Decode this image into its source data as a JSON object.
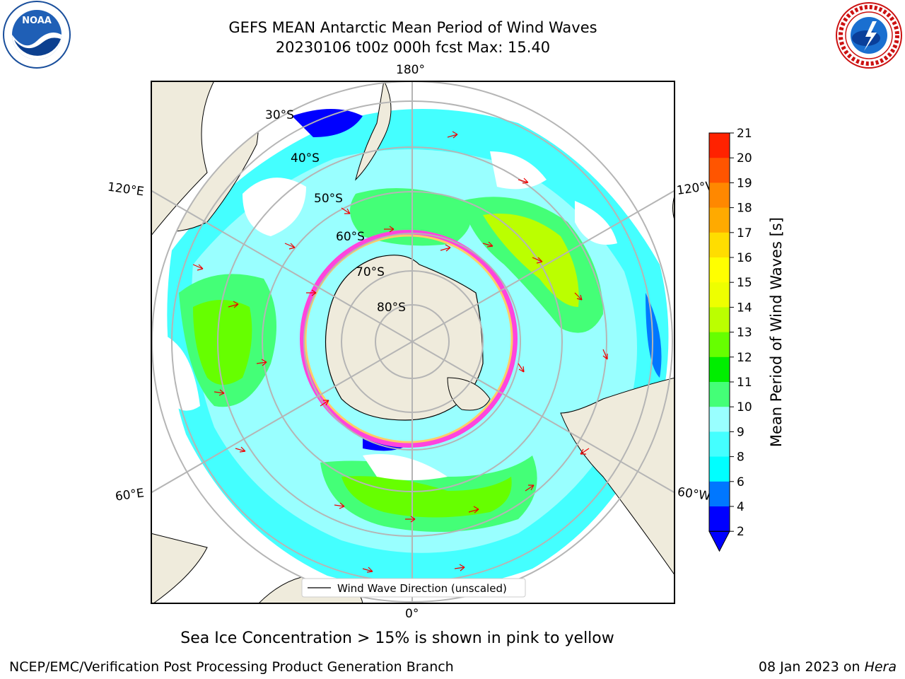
{
  "title_line1": "GEFS MEAN Antarctic Mean Period of Wind Waves",
  "title_line2": "20230106 t00z 000h fcst   Max: 15.40",
  "logos": {
    "left": "NOAA",
    "right": "NATIONAL WEATHER SERVICE"
  },
  "map": {
    "projection": "South Polar Stereographic",
    "meridian_labels": [
      "180°",
      "120°E",
      "120°W",
      "60°E",
      "60°W",
      "0°"
    ],
    "parallel_labels": [
      "30°S",
      "40°S",
      "50°S",
      "60°S",
      "70°S",
      "80°S"
    ],
    "legend_label": "Wind Wave Direction (unscaled)"
  },
  "colorbar": {
    "label": "Mean Period of Wind Waves [s]",
    "ticks": [
      "2",
      "4",
      "6",
      "8",
      "9",
      "10",
      "11",
      "12",
      "13",
      "14",
      "15",
      "16",
      "17",
      "18",
      "19",
      "20",
      "21"
    ],
    "colors": [
      "#0000ff",
      "#0077ff",
      "#00ffff",
      "#44ffff",
      "#99ffff",
      "#44ff77",
      "#00ee00",
      "#66ff00",
      "#bbff00",
      "#eeff00",
      "#ffff00",
      "#ffdd00",
      "#ffaa00",
      "#ff8800",
      "#ff5500",
      "#ff2200"
    ]
  },
  "footer": {
    "note": "Sea Ice Concentration > 15% is shown in pink to yellow",
    "left": "NCEP/EMC/Verification Post Processing Product Generation Branch",
    "right_prefix": "08 Jan 2023 on ",
    "right_italic": "Hera"
  }
}
